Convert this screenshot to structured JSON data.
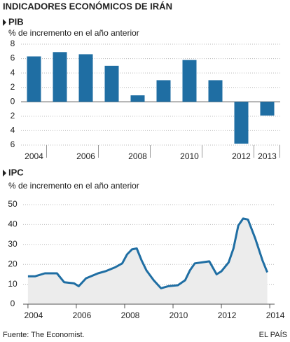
{
  "title": "INDICADORES ECONÓMICOS DE IRÁN",
  "source": "Fuente: The Economist.",
  "brand": "EL PAÍS",
  "chart_data": [
    {
      "type": "bar",
      "title": "PIB",
      "subtitle": "% de incremento en el año anterior",
      "categories": [
        "2004",
        null,
        "2006",
        null,
        "2008",
        null,
        "2010",
        null,
        "2012",
        "2013"
      ],
      "values": [
        6.3,
        6.9,
        6.6,
        5.0,
        0.9,
        3.0,
        5.8,
        3.0,
        -5.8,
        -1.9
      ],
      "color": "#1f6ea3",
      "ylim": [
        -6,
        8
      ],
      "yticks": [
        {
          "value": -6,
          "label": "6"
        },
        {
          "value": -4,
          "label": "4"
        },
        {
          "value": -2,
          "label": "2"
        },
        0,
        2,
        4,
        6,
        8
      ],
      "grid": true
    },
    {
      "type": "line",
      "title": "IPC",
      "subtitle": "% de incremento en el año anterior",
      "x": [
        2004.0,
        2004.3,
        2004.7,
        2005.2,
        2005.5,
        2005.9,
        2006.1,
        2006.4,
        2006.9,
        2007.2,
        2007.6,
        2007.9,
        2008.1,
        2008.3,
        2008.5,
        2008.7,
        2008.9,
        2009.2,
        2009.5,
        2009.8,
        2010.2,
        2010.5,
        2010.7,
        2010.9,
        2011.2,
        2011.5,
        2011.8,
        2012.0,
        2012.3,
        2012.5,
        2012.7,
        2012.9,
        2013.1,
        2013.4,
        2013.7,
        2013.9
      ],
      "values": [
        14,
        14,
        15.5,
        15.5,
        11,
        10.5,
        9,
        13,
        15.5,
        16.5,
        18.5,
        20.5,
        25,
        27.5,
        28,
        22,
        17,
        12,
        8,
        9,
        9.5,
        12,
        17,
        20.5,
        21,
        21.5,
        15,
        16.5,
        21,
        28,
        39.5,
        43,
        42.5,
        33,
        22,
        16
      ],
      "color": "#1f6ea3",
      "xlim": [
        2003.8,
        2014.2
      ],
      "xticks": [
        2004,
        2006,
        2008,
        2010,
        2012,
        2014
      ],
      "ylim": [
        0,
        50
      ],
      "yticks": [
        0,
        10,
        20,
        30,
        40,
        50
      ],
      "grid": true
    }
  ]
}
